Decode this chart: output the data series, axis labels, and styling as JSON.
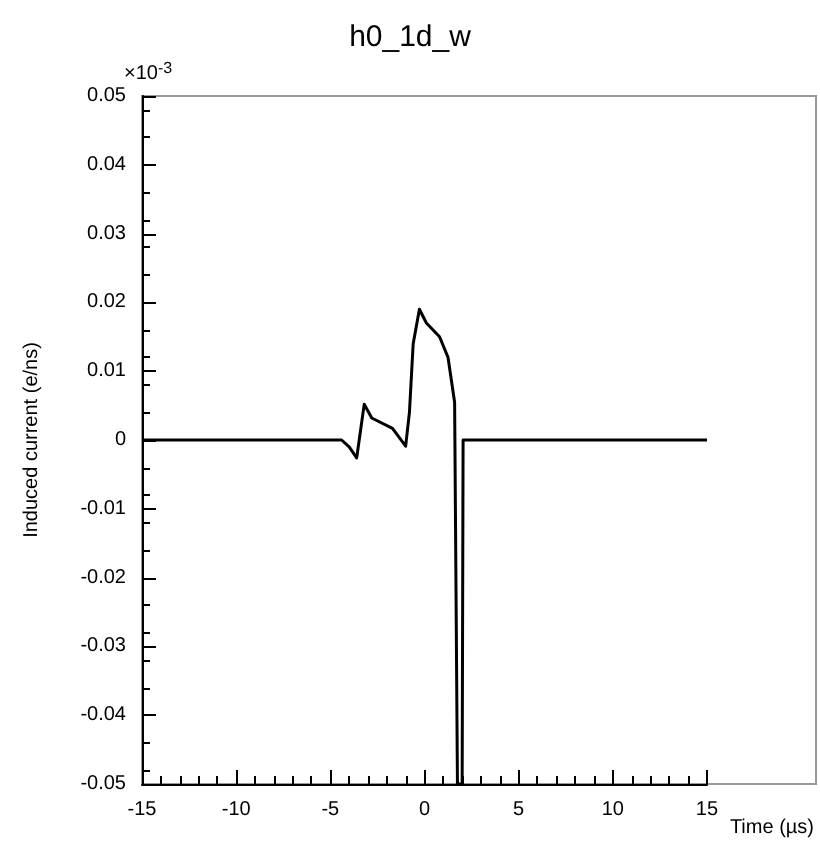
{
  "chart_data": {
    "type": "line",
    "title": "h0_1d_w",
    "xlabel": "Time (µs)",
    "ylabel": "Induced current (e/ns)",
    "annotations": [
      "×10$^{-3}$"
    ],
    "x": [
      -15,
      -4.4,
      -4,
      -3.6,
      -3.2,
      -2.8,
      -1.7,
      -1.0,
      -0.8,
      -0.6,
      -0.27,
      0.1,
      0.8,
      1.25,
      1.6,
      1.75,
      1.8,
      2.0,
      2.05,
      15
    ],
    "series": [
      {
        "color": "#000000",
        "values": [
          0,
          0,
          -0.001,
          -0.0026,
          0.0052,
          0.0032,
          0.0017,
          -0.0009,
          0.004,
          0.014,
          0.019,
          0.017,
          0.015,
          0.012,
          0.0055,
          -0.05,
          -0.05,
          -0.05,
          0,
          0
        ]
      }
    ],
    "xlim": [
      -15,
      15
    ],
    "xticks": [
      -15,
      -10,
      -5,
      0,
      5,
      10,
      15
    ],
    "ylim": [
      -0.05,
      0.05
    ],
    "yticks": [
      -0.05,
      -0.04,
      -0.03,
      -0.02,
      -0.01,
      0,
      0.01,
      0.02,
      0.03,
      0.04,
      0.05
    ],
    "marker": "none",
    "line_style": "solid"
  }
}
